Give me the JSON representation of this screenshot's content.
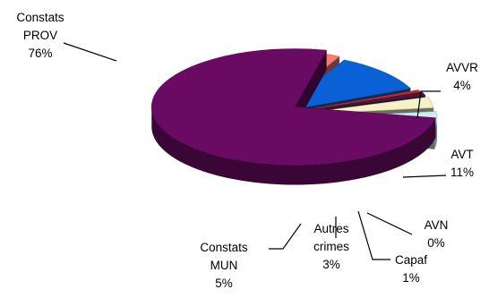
{
  "chart_data": {
    "type": "pie",
    "title": "",
    "three_d": true,
    "exploded": true,
    "legend": "none",
    "slices": [
      {
        "label": "Constats PROV",
        "label_lines": [
          "Constats",
          "PROV"
        ],
        "value_text": "76%",
        "value": 76,
        "color": "#6a0b63"
      },
      {
        "label": "AVVR",
        "label_lines": [
          "AVVR"
        ],
        "value_text": "4%",
        "value": 4,
        "color": "#ff7b73"
      },
      {
        "label": "AVT",
        "label_lines": [
          "AVT"
        ],
        "value_text": "11%",
        "value": 11,
        "color": "#0a61d6"
      },
      {
        "label": "AVN",
        "label_lines": [
          "AVN"
        ],
        "value_text": "0%",
        "value": 0,
        "color": "#c12e1f"
      },
      {
        "label": "Capaf",
        "label_lines": [
          "Capaf"
        ],
        "value_text": "1%",
        "value": 1,
        "color": "#4c1547"
      },
      {
        "label": "Autres crimes",
        "label_lines": [
          "Autres",
          "crimes"
        ],
        "value_text": "3%",
        "value": 3,
        "color": "#f5f1c9"
      },
      {
        "label": "Constats MUN",
        "label_lines": [
          "Constats",
          "MUN"
        ],
        "value_text": "5%",
        "value": 5,
        "color": "#c9eef3"
      }
    ]
  }
}
